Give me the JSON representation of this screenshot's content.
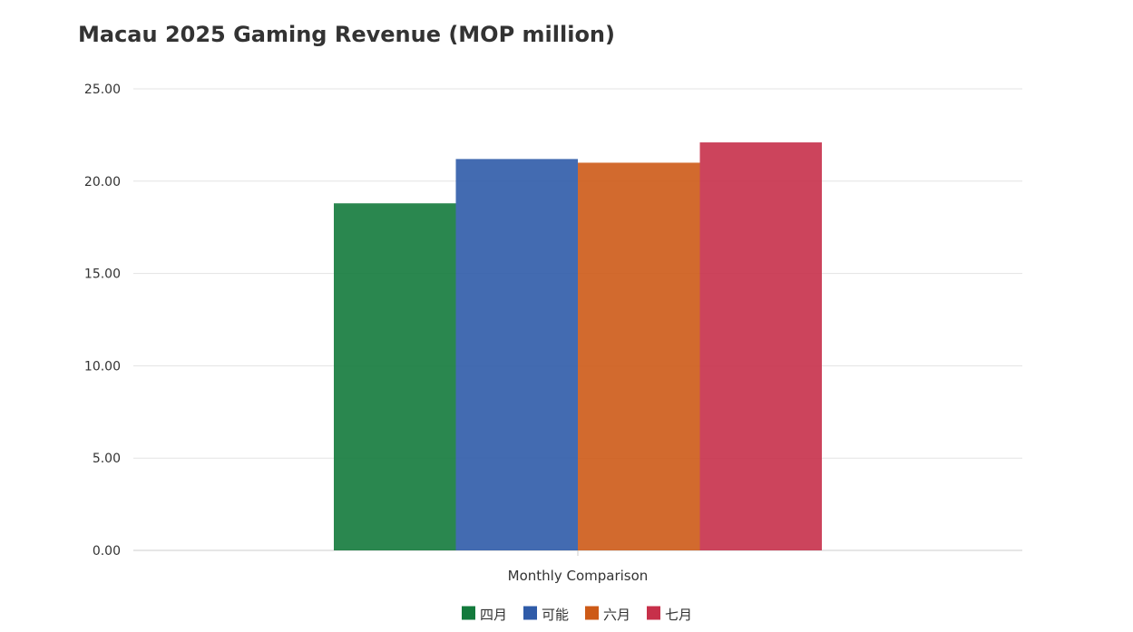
{
  "chart_data": {
    "type": "bar",
    "title": "Macau 2025 Gaming Revenue (MOP million)",
    "xlabel": "",
    "ylabel": "",
    "categories": [
      "Monthly Comparison"
    ],
    "series": [
      {
        "name": "四月",
        "values": [
          18.8
        ],
        "color": "#137a3c"
      },
      {
        "name": "可能",
        "values": [
          21.2
        ],
        "color": "#2f5ba8"
      },
      {
        "name": "六月",
        "values": [
          21.0
        ],
        "color": "#cd5a17"
      },
      {
        "name": "七月",
        "values": [
          22.1
        ],
        "color": "#c7304a"
      }
    ],
    "ylim": [
      0,
      25
    ],
    "yticks": [
      "0.00",
      "5.00",
      "10.00",
      "15.00",
      "20.00",
      "25.00"
    ],
    "grid": true,
    "legend_position": "bottom"
  }
}
